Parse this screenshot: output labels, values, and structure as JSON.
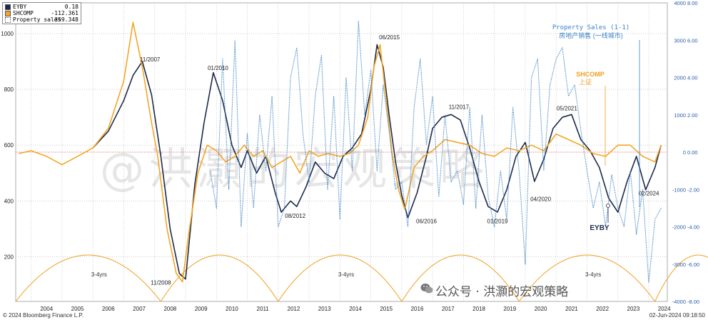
{
  "chart_data": {
    "type": "line",
    "legend": {
      "placement": "top-left",
      "entries": [
        {
          "name": "EYBY",
          "value": "0.18",
          "color": "#1c2a4a",
          "style": "solid"
        },
        {
          "name": "SHCOMP",
          "value": "-112.361",
          "color": "#f5a623",
          "style": "solid"
        },
        {
          "name": "Property sales",
          "value": "359.348",
          "color": "#3b82c4",
          "style": "dotted"
        }
      ]
    },
    "x_tick_labels": [
      "2004",
      "2005",
      "2006",
      "2007",
      "2008",
      "2009",
      "2010",
      "2011",
      "2012",
      "2013",
      "2014",
      "2015",
      "2016",
      "2017",
      "2018",
      "2019",
      "2020",
      "2021",
      "2022",
      "2023",
      "2024"
    ],
    "x_range": [
      2003.5,
      2024.6
    ],
    "left_axis": {
      "ticks": [
        200,
        400,
        600,
        800,
        1000
      ],
      "range": [
        40,
        1110
      ]
    },
    "right_axis": {
      "ticks": [
        "8.00",
        "6.00",
        "4.00",
        "2.00",
        "0.00",
        "-2.00",
        "-4.00",
        "-6.00",
        "-8.00"
      ],
      "range": [
        -8,
        8
      ]
    },
    "right_axis_inner": {
      "ticks": [
        "4000",
        "3000",
        "2000",
        "1000",
        "0",
        "-1000",
        "-2000",
        "-3000",
        "-4000"
      ],
      "range": [
        -4000,
        4000
      ]
    },
    "zero_line": 0,
    "series": [
      {
        "name": "EYBY",
        "axis": "left",
        "x": [
          2006.0,
          2006.5,
          2007.0,
          2007.3,
          2007.6,
          2007.9,
          2008.2,
          2008.5,
          2008.8,
          2009.0,
          2009.3,
          2009.6,
          2009.9,
          2010.2,
          2010.5,
          2010.8,
          2011.0,
          2011.3,
          2011.6,
          2011.9,
          2012.1,
          2012.4,
          2012.6,
          2012.9,
          2013.2,
          2013.5,
          2013.8,
          2014.1,
          2014.4,
          2014.7,
          2015.0,
          2015.2,
          2015.4,
          2015.6,
          2015.8,
          2016.0,
          2016.2,
          2016.5,
          2016.8,
          2017.0,
          2017.3,
          2017.6,
          2017.9,
          2018.2,
          2018.5,
          2018.8,
          2019.1,
          2019.4,
          2019.7,
          2020.0,
          2020.3,
          2020.6,
          2020.9,
          2021.2,
          2021.5,
          2021.8,
          2022.1,
          2022.4,
          2022.7,
          2023.0,
          2023.3,
          2023.6,
          2023.9,
          2024.2,
          2024.4
        ],
        "values": [
          590,
          650,
          760,
          850,
          900,
          780,
          560,
          300,
          140,
          120,
          460,
          680,
          860,
          760,
          600,
          520,
          580,
          500,
          560,
          430,
          360,
          400,
          380,
          450,
          540,
          500,
          480,
          560,
          590,
          640,
          800,
          960,
          880,
          700,
          540,
          420,
          340,
          430,
          560,
          660,
          700,
          710,
          690,
          590,
          470,
          380,
          360,
          440,
          560,
          610,
          470,
          550,
          660,
          700,
          710,
          620,
          580,
          520,
          410,
          360,
          470,
          560,
          440,
          520,
          600
        ]
      },
      {
        "name": "SHCOMP",
        "axis": "left",
        "x": [
          2003.6,
          2004.0,
          2004.5,
          2005.0,
          2005.5,
          2006.0,
          2006.5,
          2007.0,
          2007.3,
          2007.6,
          2007.9,
          2008.1,
          2008.4,
          2008.7,
          2008.9,
          2009.1,
          2009.4,
          2009.7,
          2010.0,
          2010.3,
          2010.6,
          2010.9,
          2011.2,
          2011.5,
          2011.8,
          2012.1,
          2012.4,
          2012.7,
          2013.0,
          2013.3,
          2013.6,
          2014.0,
          2014.3,
          2014.6,
          2014.9,
          2015.1,
          2015.3,
          2015.5,
          2015.7,
          2015.9,
          2016.1,
          2016.4,
          2016.7,
          2017.0,
          2017.4,
          2017.8,
          2018.2,
          2018.6,
          2019.0,
          2019.4,
          2019.8,
          2020.2,
          2020.6,
          2021.0,
          2021.4,
          2021.8,
          2022.2,
          2022.6,
          2023.0,
          2023.4,
          2023.8,
          2024.2,
          2024.4
        ],
        "values": [
          570,
          580,
          560,
          530,
          560,
          590,
          660,
          830,
          1040,
          880,
          680,
          560,
          300,
          140,
          110,
          280,
          500,
          600,
          580,
          540,
          560,
          600,
          560,
          580,
          520,
          540,
          560,
          500,
          580,
          560,
          570,
          560,
          570,
          600,
          700,
          880,
          960,
          760,
          560,
          440,
          370,
          520,
          560,
          580,
          620,
          610,
          600,
          570,
          560,
          590,
          580,
          600,
          580,
          640,
          620,
          600,
          570,
          560,
          600,
          600,
          560,
          540,
          600
        ]
      },
      {
        "name": "Property sales",
        "axis": "right",
        "x": [
          2009.8,
          2010.0,
          2010.2,
          2010.4,
          2010.6,
          2010.8,
          2011.0,
          2011.2,
          2011.4,
          2011.6,
          2011.8,
          2012.0,
          2012.2,
          2012.4,
          2012.6,
          2012.8,
          2013.0,
          2013.2,
          2013.4,
          2013.6,
          2013.8,
          2014.0,
          2014.2,
          2014.4,
          2014.6,
          2014.8,
          2015.0,
          2015.2,
          2015.4,
          2015.6,
          2015.8,
          2016.0,
          2016.2,
          2016.4,
          2016.6,
          2016.8,
          2017.0,
          2017.2,
          2017.4,
          2017.6,
          2017.8,
          2018.0,
          2018.2,
          2018.4,
          2018.6,
          2018.8,
          2019.0,
          2019.2,
          2019.4,
          2019.6,
          2019.8,
          2020.0,
          2020.2,
          2020.4,
          2020.6,
          2020.8,
          2021.0,
          2021.2,
          2021.4,
          2021.6,
          2021.8,
          2022.0,
          2022.2,
          2022.4,
          2022.6,
          2022.8,
          2023.0,
          2023.2,
          2023.4,
          2023.6,
          2023.8,
          2024.0,
          2024.2,
          2024.4
        ],
        "values": [
          -500,
          -1500,
          2500,
          -1000,
          3000,
          -2000,
          500,
          -1500,
          1000,
          -500,
          1500,
          -2000,
          -1500,
          2000,
          2800,
          500,
          -800,
          1500,
          2600,
          -1000,
          1500,
          -1800,
          2000,
          -500,
          3500,
          1000,
          2200,
          -500,
          1800,
          500,
          -1000,
          -800,
          -2000,
          1200,
          2500,
          200,
          1500,
          -1200,
          1000,
          -800,
          -500,
          -1400,
          1200,
          -1500,
          1000,
          -1200,
          -2000,
          -500,
          -1800,
          1200,
          -500,
          -3000,
          2000,
          2500,
          -500,
          1800,
          2500,
          2800,
          1500,
          1800,
          600,
          -500,
          -1500,
          -800,
          -2000,
          -600,
          -1500,
          -2000,
          -500,
          -2200,
          -1000,
          -3500,
          -1800,
          -1500
        ]
      }
    ],
    "cycle_label": "3-4yrs",
    "annotations": [
      {
        "text": "11/2007",
        "x": 2007.85,
        "y": 900
      },
      {
        "text": "01/2010",
        "x": 2010.05,
        "y": 870
      },
      {
        "text": "11/2008",
        "x": 2008.2,
        "y": 100
      },
      {
        "text": "08/2012",
        "x": 2012.55,
        "y": 340
      },
      {
        "text": "06/2015",
        "x": 2015.6,
        "y": 980
      },
      {
        "text": "06/2016",
        "x": 2016.8,
        "y": 320
      },
      {
        "text": "11/2017",
        "x": 2017.85,
        "y": 730
      },
      {
        "text": "01/2019",
        "x": 2019.1,
        "y": 320
      },
      {
        "text": "04/2020",
        "x": 2020.5,
        "y": 400
      },
      {
        "text": "05/2021",
        "x": 2021.35,
        "y": 725
      },
      {
        "text": "02/2024",
        "x": 2024.0,
        "y": 420
      }
    ],
    "callouts": {
      "property_en": "Property Sales (1-1)",
      "property_cn": "房地产销售 (一线城市)",
      "shcomp_en": "SHCOMP",
      "shcomp_cn": "上证",
      "eyby": "EYBY"
    },
    "watermark": "@洪灝的宏观策略"
  },
  "footer": {
    "copyright": "© 2024 Bloomberg Finance L.P.",
    "timestamp": "02-Jun-2024 09:18:50",
    "wechat": "公众号 · 洪灝的宏观策略"
  }
}
